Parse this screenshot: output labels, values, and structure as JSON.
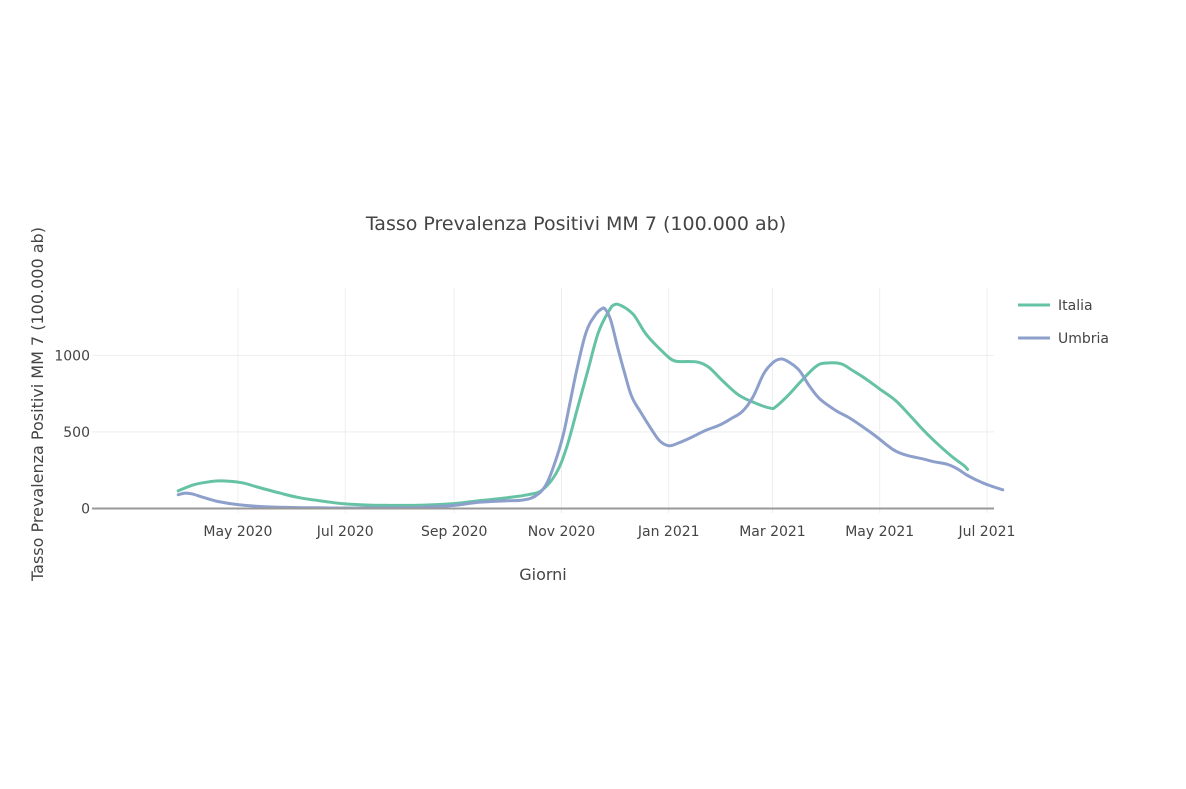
{
  "chart_data": {
    "type": "line",
    "title": "Tasso Prevalenza Positivi MM 7 (100.000 ab)",
    "xlabel": "Giorni",
    "ylabel": "Tasso Prevalenza Positivi MM 7 (100.000 ab)",
    "x_type": "date",
    "xlim": [
      "2020-02-08",
      "2021-07-05"
    ],
    "ylim": [
      -95,
      1440
    ],
    "x_ticks": [
      {
        "date": "2020-05-01",
        "label": "May 2020"
      },
      {
        "date": "2020-07-01",
        "label": "Jul 2020"
      },
      {
        "date": "2020-09-01",
        "label": "Sep 2020"
      },
      {
        "date": "2020-11-01",
        "label": "Nov 2020"
      },
      {
        "date": "2021-01-01",
        "label": "Jan 2021"
      },
      {
        "date": "2021-03-01",
        "label": "Mar 2021"
      },
      {
        "date": "2021-05-01",
        "label": "May 2021"
      },
      {
        "date": "2021-07-01",
        "label": "Jul 2021"
      }
    ],
    "y_ticks": [
      {
        "value": 0,
        "label": "0"
      },
      {
        "value": 500,
        "label": "500"
      },
      {
        "value": 1000,
        "label": "1000"
      }
    ],
    "grid": true,
    "legend_position": "top-right",
    "series": [
      {
        "name": "Italia",
        "color": "#66c2a5",
        "points": [
          [
            "2020-03-28",
            115
          ],
          [
            "2020-04-06",
            155
          ],
          [
            "2020-04-15",
            175
          ],
          [
            "2020-04-22",
            180
          ],
          [
            "2020-05-03",
            168
          ],
          [
            "2020-05-12",
            140
          ],
          [
            "2020-05-25",
            100
          ],
          [
            "2020-06-05",
            70
          ],
          [
            "2020-06-20",
            45
          ],
          [
            "2020-07-01",
            30
          ],
          [
            "2020-07-15",
            22
          ],
          [
            "2020-08-01",
            20
          ],
          [
            "2020-08-15",
            22
          ],
          [
            "2020-09-01",
            32
          ],
          [
            "2020-09-15",
            50
          ],
          [
            "2020-10-01",
            70
          ],
          [
            "2020-10-13",
            90
          ],
          [
            "2020-10-21",
            120
          ],
          [
            "2020-10-29",
            230
          ],
          [
            "2020-11-04",
            400
          ],
          [
            "2020-11-10",
            650
          ],
          [
            "2020-11-16",
            900
          ],
          [
            "2020-11-22",
            1150
          ],
          [
            "2020-11-28",
            1290
          ],
          [
            "2020-12-01",
            1330
          ],
          [
            "2020-12-05",
            1325
          ],
          [
            "2020-12-12",
            1265
          ],
          [
            "2020-12-19",
            1140
          ],
          [
            "2020-12-28",
            1030
          ],
          [
            "2021-01-04",
            965
          ],
          [
            "2021-01-12",
            960
          ],
          [
            "2021-01-18",
            955
          ],
          [
            "2021-01-24",
            920
          ],
          [
            "2021-02-01",
            830
          ],
          [
            "2021-02-10",
            740
          ],
          [
            "2021-02-20",
            685
          ],
          [
            "2021-02-28",
            655
          ],
          [
            "2021-03-03",
            665
          ],
          [
            "2021-03-10",
            740
          ],
          [
            "2021-03-18",
            840
          ],
          [
            "2021-03-26",
            930
          ],
          [
            "2021-04-01",
            950
          ],
          [
            "2021-04-09",
            945
          ],
          [
            "2021-04-15",
            905
          ],
          [
            "2021-04-22",
            855
          ],
          [
            "2021-05-01",
            780
          ],
          [
            "2021-05-10",
            705
          ],
          [
            "2021-05-18",
            610
          ],
          [
            "2021-05-26",
            510
          ],
          [
            "2021-06-04",
            410
          ],
          [
            "2021-06-12",
            330
          ],
          [
            "2021-06-18",
            280
          ],
          [
            "2021-06-20",
            255
          ]
        ]
      },
      {
        "name": "Umbria",
        "color": "#8da0cb",
        "points": [
          [
            "2020-03-28",
            90
          ],
          [
            "2020-04-01",
            100
          ],
          [
            "2020-04-05",
            95
          ],
          [
            "2020-04-12",
            70
          ],
          [
            "2020-04-20",
            45
          ],
          [
            "2020-05-01",
            25
          ],
          [
            "2020-05-15",
            12
          ],
          [
            "2020-06-01",
            6
          ],
          [
            "2020-06-15",
            4
          ],
          [
            "2020-07-01",
            3
          ],
          [
            "2020-07-15",
            3
          ],
          [
            "2020-08-01",
            4
          ],
          [
            "2020-08-15",
            8
          ],
          [
            "2020-09-01",
            20
          ],
          [
            "2020-09-15",
            40
          ],
          [
            "2020-10-01",
            50
          ],
          [
            "2020-10-10",
            55
          ],
          [
            "2020-10-17",
            80
          ],
          [
            "2020-10-23",
            150
          ],
          [
            "2020-10-28",
            290
          ],
          [
            "2020-11-02",
            480
          ],
          [
            "2020-11-06",
            700
          ],
          [
            "2020-11-10",
            920
          ],
          [
            "2020-11-15",
            1150
          ],
          [
            "2020-11-20",
            1260
          ],
          [
            "2020-11-24",
            1305
          ],
          [
            "2020-11-26",
            1300
          ],
          [
            "2020-11-29",
            1230
          ],
          [
            "2020-12-03",
            1050
          ],
          [
            "2020-12-07",
            880
          ],
          [
            "2020-12-11",
            730
          ],
          [
            "2020-12-16",
            630
          ],
          [
            "2020-12-22",
            520
          ],
          [
            "2020-12-27",
            440
          ],
          [
            "2021-01-01",
            410
          ],
          [
            "2021-01-06",
            425
          ],
          [
            "2021-01-14",
            465
          ],
          [
            "2021-01-22",
            510
          ],
          [
            "2021-01-30",
            545
          ],
          [
            "2021-02-06",
            590
          ],
          [
            "2021-02-12",
            635
          ],
          [
            "2021-02-18",
            730
          ],
          [
            "2021-02-24",
            880
          ],
          [
            "2021-03-01",
            950
          ],
          [
            "2021-03-05",
            975
          ],
          [
            "2021-03-09",
            965
          ],
          [
            "2021-03-16",
            905
          ],
          [
            "2021-03-22",
            800
          ],
          [
            "2021-03-28",
            715
          ],
          [
            "2021-04-06",
            640
          ],
          [
            "2021-04-14",
            590
          ],
          [
            "2021-04-23",
            520
          ],
          [
            "2021-04-29",
            470
          ],
          [
            "2021-05-05",
            415
          ],
          [
            "2021-05-10",
            375
          ],
          [
            "2021-05-17",
            345
          ],
          [
            "2021-05-25",
            325
          ],
          [
            "2021-06-01",
            305
          ],
          [
            "2021-06-08",
            290
          ],
          [
            "2021-06-14",
            260
          ],
          [
            "2021-06-20",
            215
          ],
          [
            "2021-06-28",
            170
          ],
          [
            "2021-07-05",
            140
          ],
          [
            "2021-07-10",
            122
          ]
        ]
      }
    ]
  }
}
